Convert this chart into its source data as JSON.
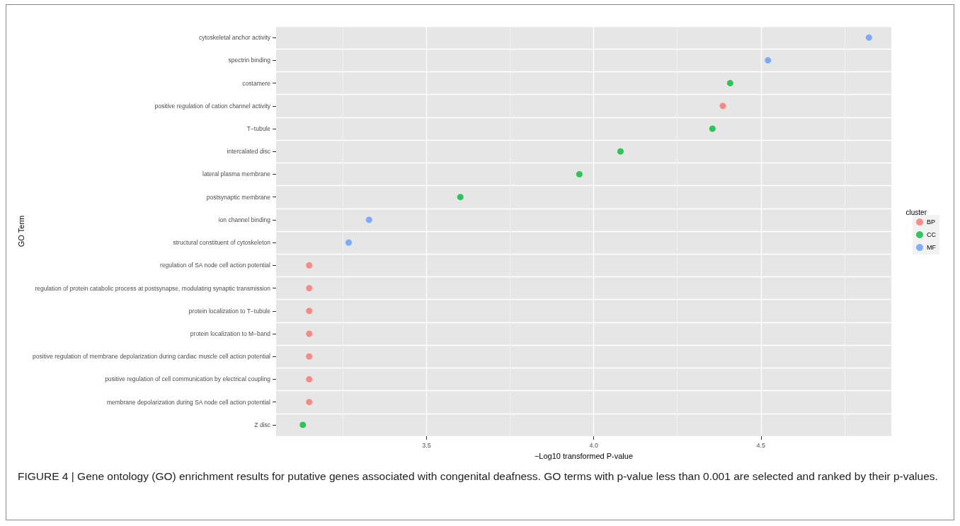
{
  "chart_data": {
    "type": "scatter",
    "orientation": "horizontal",
    "xlabel": "−Log10 transformed P-value",
    "ylabel": "GO Term",
    "legend_title": "cluster",
    "legend": "right",
    "grid": true,
    "marker": "circle",
    "categories": [
      "cytoskeletal anchor activity",
      "spectrin binding",
      "costamere",
      "positive regulation of cation channel activity",
      "T−tubule",
      "intercalated disc",
      "lateral plasma membrane",
      "postsynaptic membrane",
      "ion channel binding",
      "structural constituent of cytoskeleton",
      "regulation of SA node cell action potential",
      "regulation of protein catabolic process at postsynapse, modulating synaptic transmission",
      "protein localization to T−tubule",
      "protein localization to M−band",
      "positive regulation of membrane depolarization during cardiac muscle cell action potential",
      "positive regulation of cell communication by electrical coupling",
      "membrane depolarization during SA node cell action potential",
      "Z disc"
    ],
    "series": [
      {
        "name": "BP",
        "color": "#f8766d",
        "values": [
          null,
          null,
          null,
          4.386,
          null,
          null,
          null,
          null,
          null,
          null,
          3.149,
          3.149,
          3.149,
          3.149,
          3.149,
          3.149,
          3.149,
          null
        ]
      },
      {
        "name": "CC",
        "color": "#00ba38",
        "values": [
          null,
          null,
          4.408,
          null,
          4.355,
          4.08,
          3.957,
          3.601,
          null,
          null,
          null,
          null,
          null,
          null,
          null,
          null,
          null,
          3.13
        ]
      },
      {
        "name": "MF",
        "color": "#619cff",
        "values": [
          4.823,
          4.521,
          null,
          null,
          null,
          null,
          null,
          null,
          3.328,
          3.267,
          null,
          null,
          null,
          null,
          null,
          null,
          null,
          null
        ]
      }
    ],
    "xlim": [
      3.05,
      4.89
    ],
    "xticks": [
      {
        "value": 3.25,
        "label": null
      },
      3.5,
      {
        "value": 3.75,
        "label": null
      },
      {
        "value": 4,
        "label": "4.0"
      },
      {
        "value": 4.25,
        "label": null
      },
      4.5,
      {
        "value": 4.75,
        "label": null
      }
    ],
    "annotations": [
      "FIGURE 4 | Gene ontology (GO) enrichment results for putative genes associated with congenital deafness. GO terms with p-value less than 0.001 are selected and ranked by their p-values."
    ]
  }
}
